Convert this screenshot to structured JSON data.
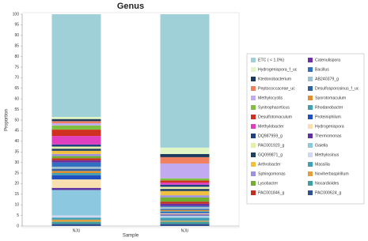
{
  "chart_data": {
    "type": "stacked_bar",
    "title": "Genus",
    "x_label": "Sample",
    "y_label": "Proportion",
    "categories": [
      "NJU",
      "NJU"
    ],
    "ylim": [
      0,
      100
    ],
    "yticks": [
      0,
      5,
      10,
      15,
      20,
      25,
      30,
      35,
      40,
      45,
      50,
      55,
      60,
      65,
      70,
      75,
      80,
      85,
      90,
      95,
      100
    ],
    "series": [
      {
        "name": "ETC ( < 1.0%)",
        "color": "#9fd0d8",
        "values": [
          48.5,
          63
        ]
      },
      {
        "name": "Hydrogenispora_f_uc",
        "color": "#e2f5c4",
        "values": [
          1,
          3
        ]
      },
      {
        "name": "Ktedonobacterium",
        "color": "#1d3a5c",
        "values": [
          1,
          1.5
        ]
      },
      {
        "name": "Peptococcaceae_uc",
        "color": "#f08060",
        "values": [
          1,
          3
        ]
      },
      {
        "name": "Methylocystis",
        "color": "#c2aaf0",
        "values": [
          1,
          7
        ]
      },
      {
        "name": "Syntrophaceticus",
        "color": "#80c040",
        "values": [
          2,
          1
        ]
      },
      {
        "name": "Desulfotomaculum",
        "color": "#d03020",
        "values": [
          3,
          1
        ]
      },
      {
        "name": "Methylobacter",
        "color": "#e040c0",
        "values": [
          4,
          1
        ]
      },
      {
        "name": "DQ987959_g",
        "color": "#204080",
        "values": [
          1,
          1
        ]
      },
      {
        "name": "PAC001920_g",
        "color": "#e4f0a8",
        "values": [
          1,
          1
        ]
      },
      {
        "name": "GQ099871_g",
        "color": "#204060",
        "values": [
          1,
          1
        ]
      },
      {
        "name": "Arthrobacter",
        "color": "#f0c040",
        "values": [
          1.5,
          2
        ]
      },
      {
        "name": "Sphingomonas",
        "color": "#a090e0",
        "values": [
          1,
          1
        ]
      },
      {
        "name": "Lysobacter",
        "color": "#70b030",
        "values": [
          1,
          2
        ]
      },
      {
        "name": "PAC001846_g",
        "color": "#c03020",
        "values": [
          1,
          1
        ]
      },
      {
        "name": "Catenulispora",
        "color": "#7030a0",
        "values": [
          1,
          1
        ]
      },
      {
        "name": "Bacillus",
        "color": "#3070c0",
        "values": [
          2,
          0.5
        ]
      },
      {
        "name": "AB240379_g",
        "color": "#a0c0d0",
        "values": [
          1,
          1
        ]
      },
      {
        "name": "Desulfosporosinus_f_uc",
        "color": "#3060a0",
        "values": [
          1,
          0.5
        ]
      },
      {
        "name": "Sporotomaculum",
        "color": "#e09030",
        "values": [
          1,
          0.5
        ]
      },
      {
        "name": "Rhodanobacter",
        "color": "#40a0b0",
        "values": [
          1,
          0.5
        ]
      },
      {
        "name": "Proteiniphilum",
        "color": "#2050c0",
        "values": [
          2,
          0.5
        ]
      },
      {
        "name": "Hydrogenispora",
        "color": "#f8e0b0",
        "values": [
          4,
          0.5
        ]
      },
      {
        "name": "Thermomonas",
        "color": "#6030a0",
        "values": [
          1,
          0.5
        ]
      },
      {
        "name": "Gaiella",
        "color": "#8cc8e0",
        "values": [
          12,
          0.5
        ]
      },
      {
        "name": "Methylosinus",
        "color": "#d0d8f0",
        "values": [
          1,
          0.5
        ]
      },
      {
        "name": "Massilia",
        "color": "#40a0b8",
        "values": [
          1,
          1.5
        ]
      },
      {
        "name": "Noviherbaspirillum",
        "color": "#e0a040",
        "values": [
          1,
          0.5
        ]
      },
      {
        "name": "Nocardioides",
        "color": "#40a0a0",
        "values": [
          1,
          1
        ]
      },
      {
        "name": "PAC000624_g",
        "color": "#305090",
        "values": [
          1,
          1
        ]
      }
    ]
  }
}
